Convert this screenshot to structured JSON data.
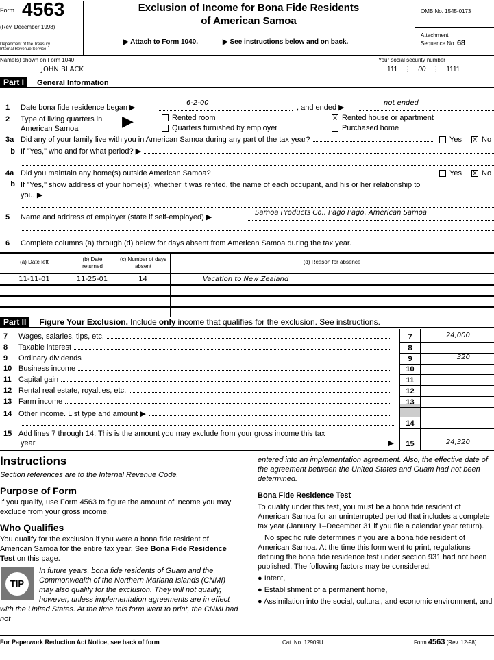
{
  "header": {
    "form_word": "Form",
    "form_number": "4563",
    "revision": "(Rev. December 1998)",
    "department": "Department of the Treasury",
    "irs": "Internal Revenue Service",
    "title_line1": "Exclusion of Income for Bona Fide Residents",
    "title_line2": "of American Samoa",
    "attach": "▶ Attach to Form 1040.",
    "see_instr": "▶ See instructions below and on back.",
    "omb": "OMB No. 1545-0173",
    "attachment": "Attachment",
    "sequence_label": "Sequence No.",
    "sequence_no": "68"
  },
  "taxpayer": {
    "name_label": "Name(s) shown on Form 1040",
    "name": "JOHN BLACK",
    "ssn_label": "Your social security number",
    "ssn": [
      "111",
      "00",
      "1111"
    ]
  },
  "part1": {
    "tag": "Part I",
    "title": "General Information",
    "l1_label": "Date bona fide residence began ▶",
    "l1_began": "6-2-00",
    "l1_ended_label": ", and ended ▶",
    "l1_ended": "not ended",
    "l2_label1": "Type of living quarters in",
    "l2_label2": "American Samoa",
    "l2_options": [
      {
        "label": "Rented room",
        "checked": false
      },
      {
        "label": "Rented house or apartment",
        "checked": true
      },
      {
        "label": "Quarters furnished by employer",
        "checked": false
      },
      {
        "label": "Purchased home",
        "checked": false
      }
    ],
    "l3a": "Did any of your family live with you in American Samoa during any part of the tax year?",
    "l3a_yes": "Yes",
    "l3a_no": "No",
    "l3a_answer": "No",
    "l3b": "If \"Yes,\" who and for what period? ▶",
    "l4a": "Did you maintain any home(s) outside American Samoa?",
    "l4a_yes": "Yes",
    "l4a_no": "No",
    "l4a_answer": "No",
    "l4b1": "If \"Yes,\" show address of your home(s), whether it was rented, the name of each occupant, and his or her relationship to",
    "l4b2": "you. ▶",
    "l5_label": "Name and address of employer (state if self-employed) ▶",
    "l5_value": "Samoa Products Co., Pago Pago, American Samoa",
    "l6": "Complete columns (a) through (d) below for days absent from American Samoa during the tax year.",
    "check_mark": "X",
    "line_numbers": [
      "1",
      "2",
      "3a",
      "b",
      "4a",
      "b",
      "5",
      "6"
    ]
  },
  "absence_table": {
    "headers": [
      "(a) Date left",
      "(b) Date returned",
      "(c) Number of days absent",
      "(d) Reason for absence"
    ],
    "rows": [
      [
        "11-11-01",
        "11-25-01",
        "14",
        "Vacation to New Zealand"
      ],
      [
        "",
        "",
        "",
        ""
      ],
      [
        "",
        "",
        "",
        ""
      ],
      [
        "",
        "",
        "",
        ""
      ]
    ]
  },
  "part2": {
    "tag": "Part II",
    "title": "Figure Your Exclusion.",
    "subtitle_pre": "Include",
    "subtitle_bold": "only",
    "subtitle_post": "income that qualifies for the exclusion. See instructions.",
    "lines": [
      {
        "n": "7",
        "label": "Wages, salaries, tips, etc.",
        "value": "24,000"
      },
      {
        "n": "8",
        "label": "Taxable interest",
        "value": ""
      },
      {
        "n": "9",
        "label": "Ordinary dividends",
        "value": "320"
      },
      {
        "n": "10",
        "label": "Business income",
        "value": ""
      },
      {
        "n": "11",
        "label": "Capital gain",
        "value": ""
      },
      {
        "n": "12",
        "label": "Rental real estate, royalties, etc.",
        "value": ""
      },
      {
        "n": "13",
        "label": "Farm income",
        "value": ""
      },
      {
        "n": "14",
        "label": "Other income. List type and amount ▶",
        "value": ""
      }
    ],
    "l15_n": "15",
    "l15_label1": "Add lines 7 through 14. This is the amount you may exclude from your gross income this tax",
    "l15_label2": "year",
    "l15_value": "24,320"
  },
  "instructions": {
    "title": "Instructions",
    "section_ref": "Section references are to the Internal Revenue Code.",
    "purpose_title": "Purpose of Form",
    "purpose_text": "If you qualify, use Form 4563 to figure the amount of income you may exclude from your gross income.",
    "who_title": "Who Qualifies",
    "who_text_pre": "You qualify for the exclusion if you were a bona fide resident of American Samoa for the entire tax year. See",
    "who_text_bold": "Bona Fide Residence Test",
    "who_text_post": "on this page.",
    "tip_label": "TIP",
    "tip_text": "In future years, bona fide residents of Guam and the Commonwealth of the Northern Mariana Islands (CNMI) may also qualify for the exclusion. They will not qualify, however, unless implementation agreements are in effect with the United States. At the time this form went to print, the CNMI had not",
    "tip_cont": "entered into an implementation agreement. Also, the effective date of the agreement between the United States and Guam had not been determined.",
    "bfrt_title": "Bona Fide Residence Test",
    "bfrt_p1": "To qualify under this test, you must be a bona fide resident of American Samoa for an uninterrupted period that includes a complete tax year (January 1–December 31 if you file a calendar year return).",
    "bfrt_p2": "No specific rule determines if you are a bona fide resident of American Samoa. At the time this form went to print, regulations defining the bona fide residence test under section 931 had not been published. The following factors may be considered:",
    "bullets": [
      "Intent,",
      "Establishment of a permanent home,",
      "Assimilation into the social, cultural, and economic environment, and"
    ]
  },
  "footer": {
    "paperwork": "For Paperwork Reduction Act Notice, see back of form",
    "cat": "Cat. No. 12909U",
    "form_word": "Form",
    "form_number": "4563",
    "rev": "(Rev. 12-98)"
  }
}
